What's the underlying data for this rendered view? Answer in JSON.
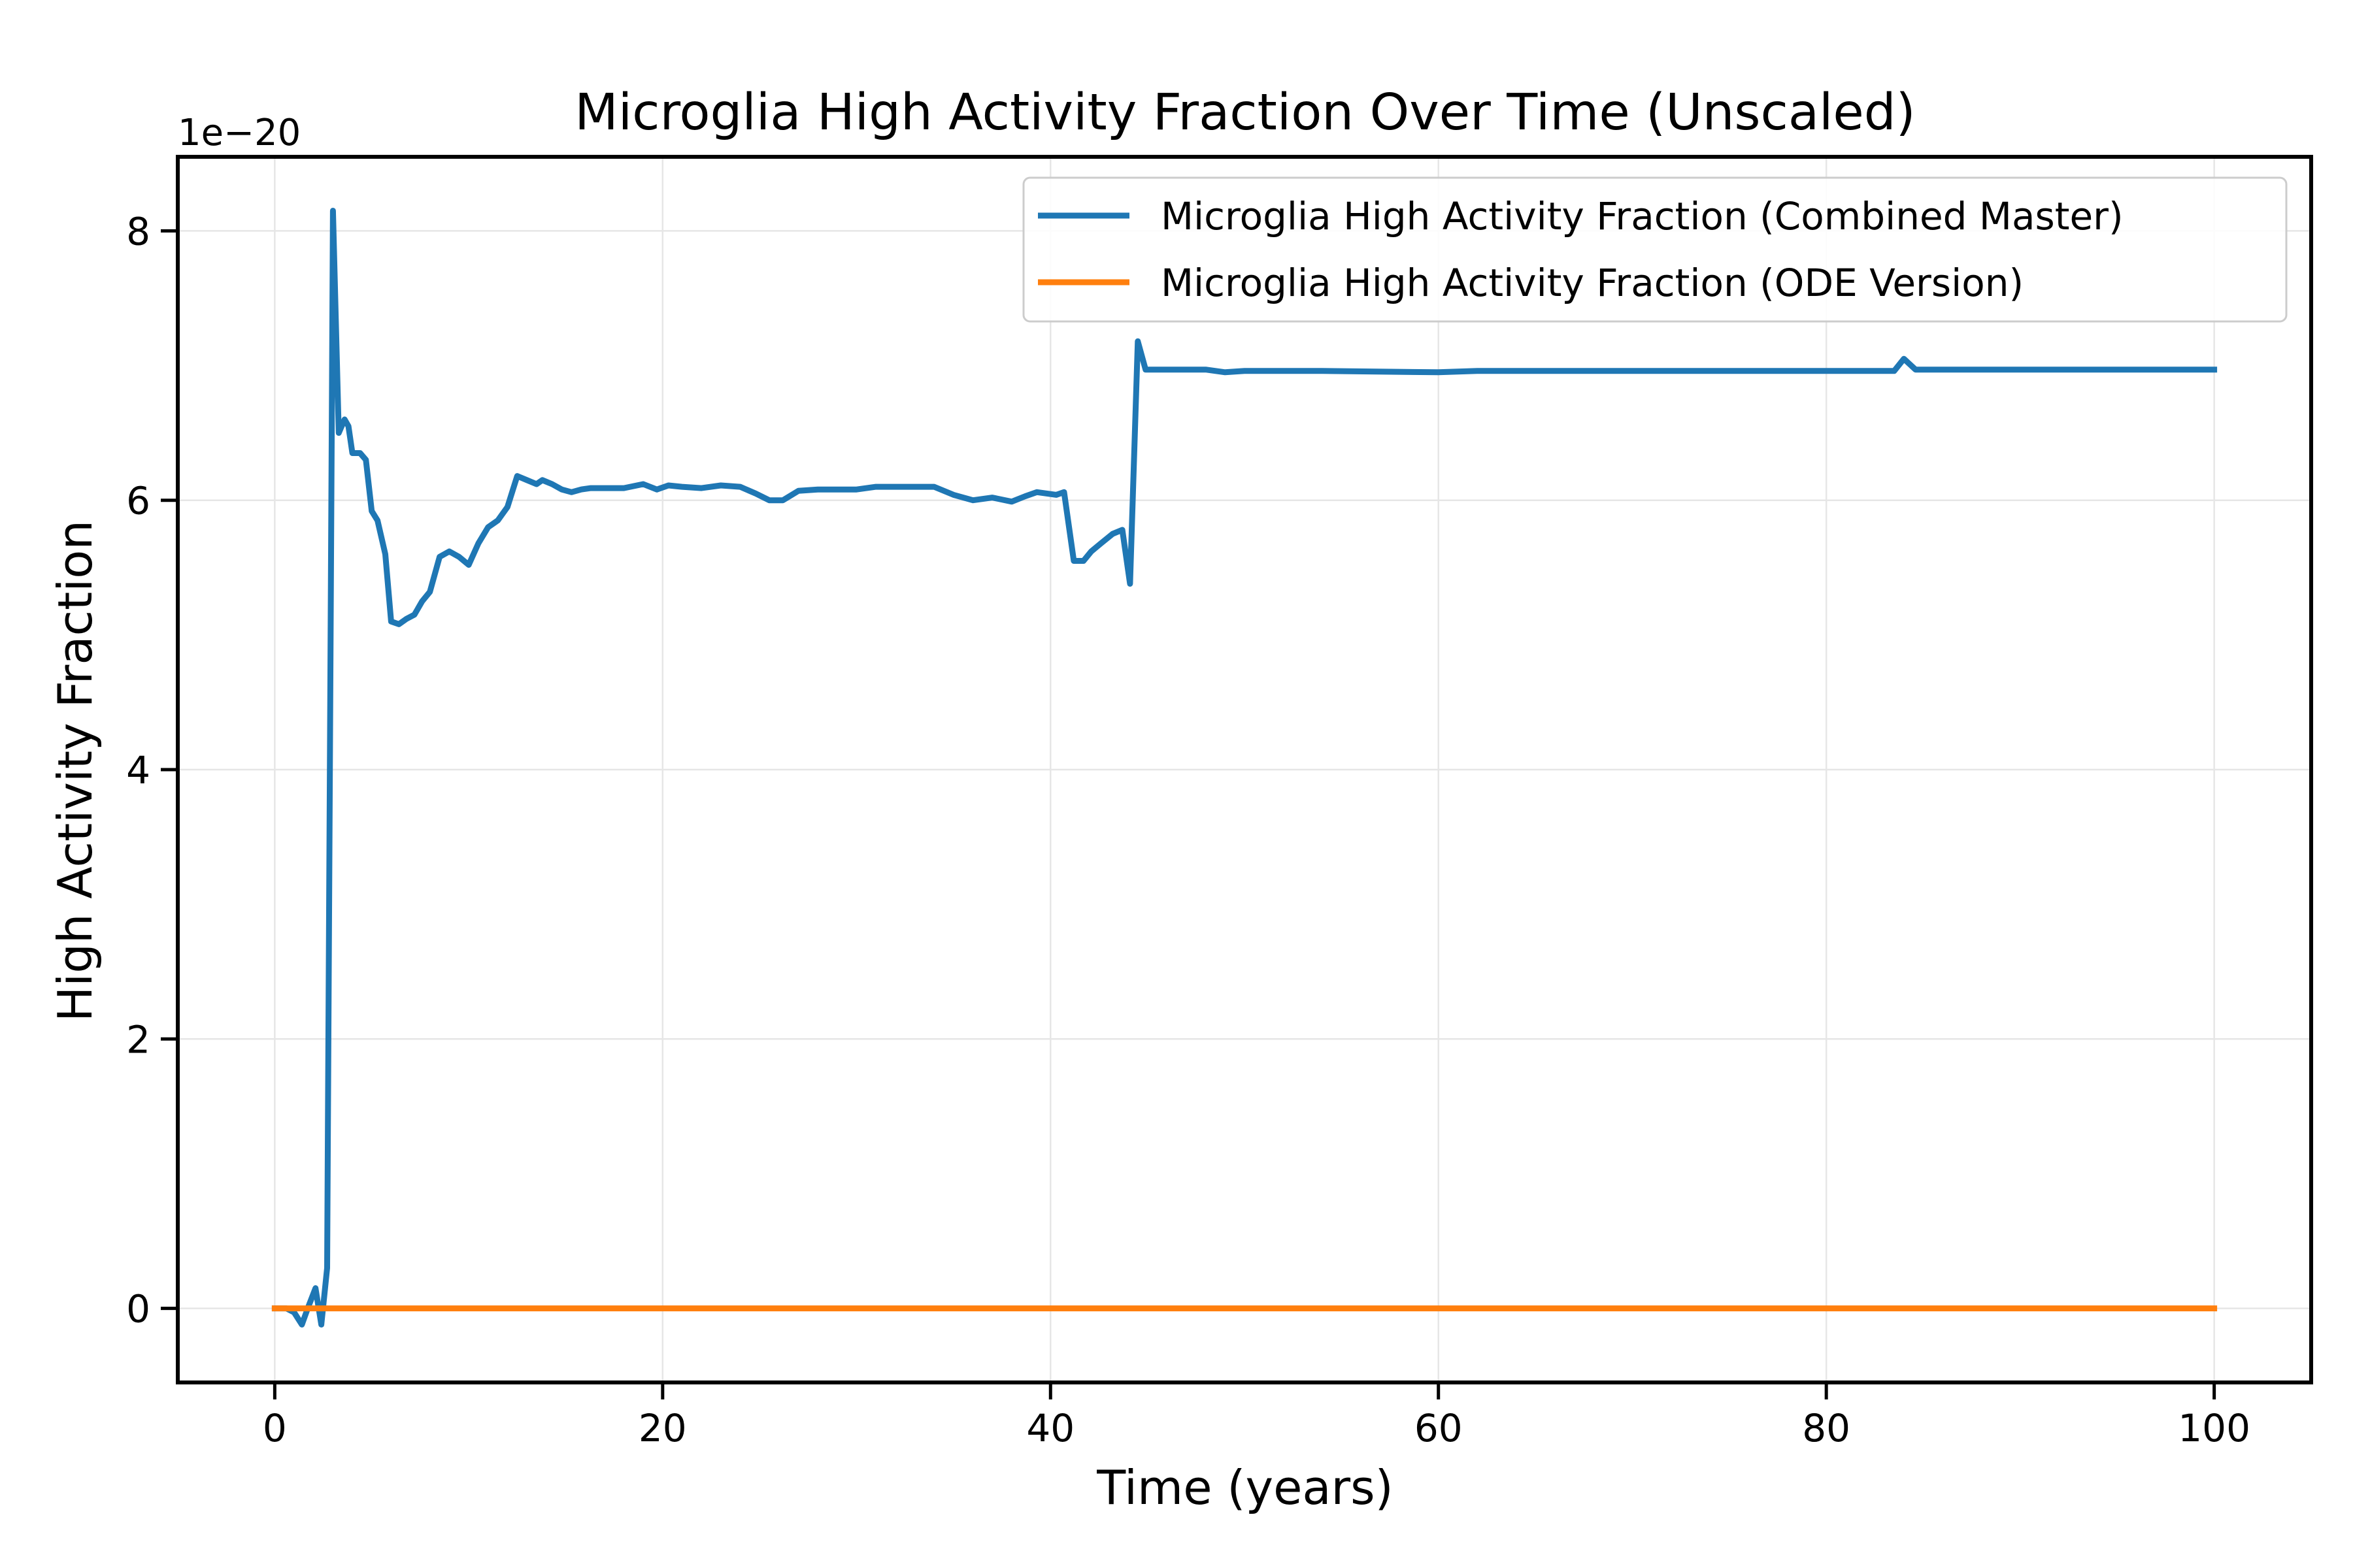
{
  "chart_data": {
    "type": "line",
    "title": "Microglia High Activity Fraction Over Time (Unscaled)",
    "xlabel": "Time (years)",
    "ylabel": "High Activity Fraction",
    "y_offset_label": "1e−20",
    "y_scale_exponent": -20,
    "xlim": [
      -5,
      105
    ],
    "ylim": [
      -0.55,
      8.55
    ],
    "x_ticks": [
      0,
      20,
      40,
      60,
      80,
      100
    ],
    "x_tick_labels": [
      "0",
      "20",
      "40",
      "60",
      "80",
      "100"
    ],
    "y_ticks": [
      0,
      2,
      4,
      6,
      8
    ],
    "y_tick_labels": [
      "0",
      "2",
      "4",
      "6",
      "8"
    ],
    "grid": true,
    "legend_position": "top-right",
    "series": [
      {
        "name": "Microglia High Activity Fraction (Combined Master)",
        "color": "#1f77b4",
        "x": [
          0,
          0.6,
          1.0,
          1.4,
          1.7,
          2.1,
          2.4,
          2.7,
          3.0,
          3.3,
          3.6,
          3.8,
          4.0,
          4.4,
          4.7,
          5.0,
          5.3,
          5.7,
          6.0,
          6.4,
          6.8,
          7.2,
          7.6,
          8.0,
          8.5,
          9.0,
          9.5,
          10.0,
          10.5,
          11.0,
          11.5,
          12.0,
          12.5,
          13.0,
          13.5,
          13.8,
          14.3,
          14.8,
          15.3,
          15.8,
          16.3,
          16.8,
          17.3,
          18,
          19,
          19.7,
          20.3,
          21,
          22,
          23,
          24,
          24.8,
          25.5,
          26.2,
          27,
          28,
          30,
          31,
          32,
          33,
          34,
          35,
          36,
          37,
          38,
          38.7,
          39.3,
          40.3,
          40.7,
          41.2,
          41.7,
          42.1,
          42.6,
          43.2,
          43.7,
          44.1,
          44.5,
          44.9,
          45.7,
          48,
          49,
          50,
          54,
          60,
          62,
          70,
          80,
          83.5,
          84,
          84.6,
          86,
          100
        ],
        "y": [
          0,
          0,
          -0.03,
          -0.12,
          0.0,
          0.15,
          -0.12,
          0.3,
          8.15,
          6.5,
          6.6,
          6.55,
          6.35,
          6.35,
          6.3,
          5.92,
          5.85,
          5.6,
          5.1,
          5.08,
          5.12,
          5.15,
          5.25,
          5.32,
          5.58,
          5.62,
          5.58,
          5.52,
          5.68,
          5.8,
          5.85,
          5.95,
          6.18,
          6.15,
          6.12,
          6.15,
          6.12,
          6.08,
          6.06,
          6.08,
          6.09,
          6.09,
          6.09,
          6.09,
          6.12,
          6.08,
          6.11,
          6.1,
          6.09,
          6.11,
          6.1,
          6.05,
          6.0,
          6.0,
          6.07,
          6.08,
          6.08,
          6.1,
          6.1,
          6.1,
          6.1,
          6.04,
          6.0,
          6.02,
          5.99,
          6.03,
          6.06,
          6.04,
          6.06,
          5.55,
          5.55,
          5.62,
          5.68,
          5.75,
          5.78,
          5.38,
          7.18,
          6.97,
          6.97,
          6.97,
          6.95,
          6.96,
          6.96,
          6.95,
          6.96,
          6.96,
          6.96,
          6.96,
          7.05,
          6.97,
          6.97,
          6.97
        ]
      },
      {
        "name": "Microglia High Activity Fraction (ODE Version)",
        "color": "#ff7f0e",
        "x": [
          0,
          100
        ],
        "y": [
          0,
          0
        ]
      }
    ]
  }
}
